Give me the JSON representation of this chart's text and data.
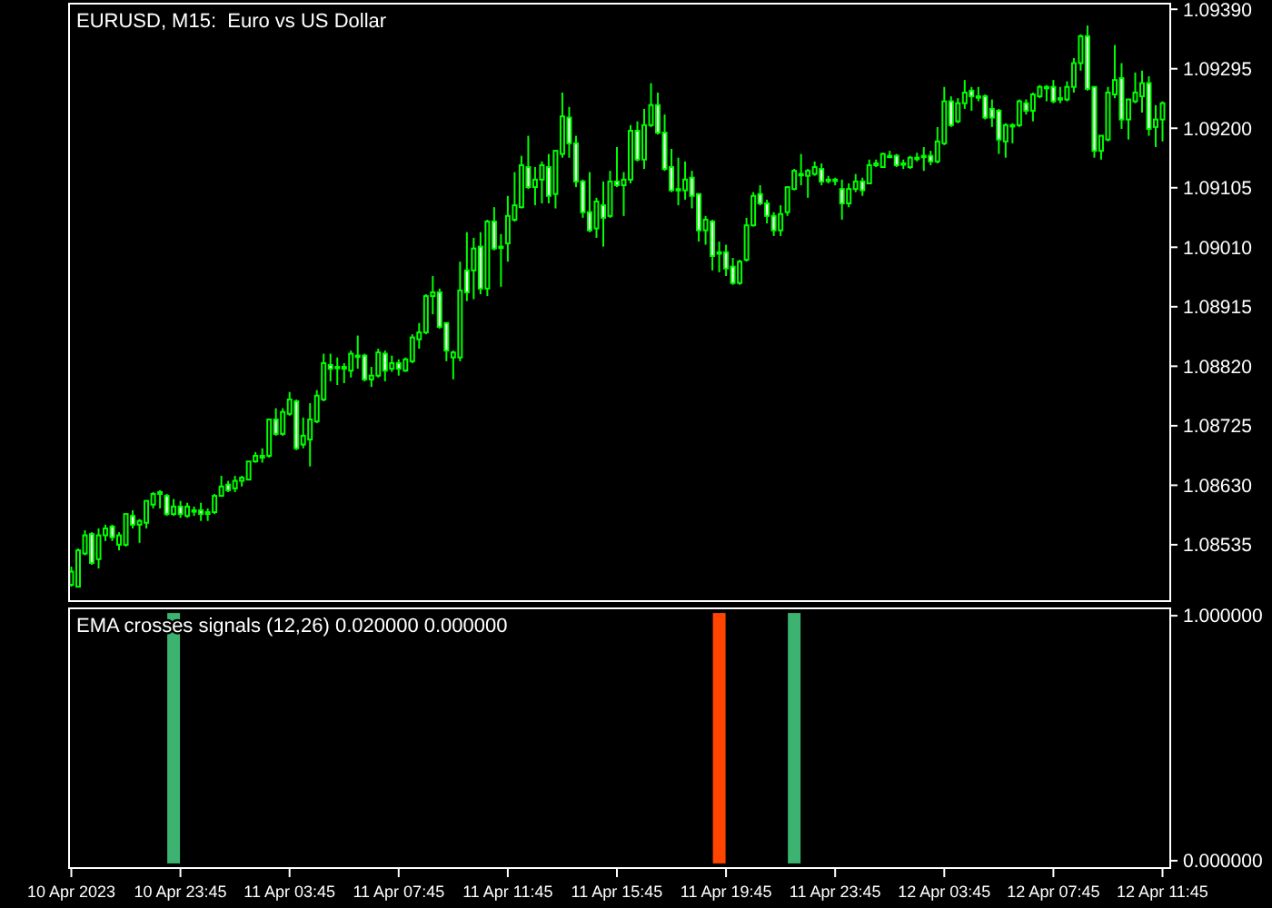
{
  "chart_data": [
    {
      "type": "candlestick",
      "title": "EURUSD, M15:  Euro vs US Dollar",
      "color": "#00ff00",
      "tick_labels": "y",
      "xlim": [
        "2023-04-10T19:40",
        "2023-04-12T12:02"
      ],
      "ylim": [
        1.08445,
        1.09399
      ],
      "yticks": [
        {
          "value": 1.0939,
          "label": "1.09390"
        },
        {
          "value": 1.09295,
          "label": "1.09295"
        },
        {
          "value": 1.092,
          "label": "1.09200"
        },
        {
          "value": 1.09105,
          "label": "1.09105"
        },
        {
          "value": 1.0901,
          "label": "1.09010"
        },
        {
          "value": 1.08915,
          "label": "1.08915"
        },
        {
          "value": 1.0882,
          "label": "1.08820"
        },
        {
          "value": 1.08725,
          "label": "1.08725"
        },
        {
          "value": 1.0863,
          "label": "1.08630"
        },
        {
          "value": 1.08535,
          "label": "1.08535"
        }
      ],
      "x": [
        "2023-04-10T19:45",
        "2023-04-10T20:00",
        "2023-04-10T20:15",
        "2023-04-10T20:30",
        "2023-04-10T20:45",
        "2023-04-10T21:00",
        "2023-04-10T21:15",
        "2023-04-10T21:30",
        "2023-04-10T21:45",
        "2023-04-10T22:00",
        "2023-04-10T22:15",
        "2023-04-10T22:30",
        "2023-04-10T22:45",
        "2023-04-10T23:00",
        "2023-04-10T23:15",
        "2023-04-10T23:30",
        "2023-04-10T23:45",
        "2023-04-11T00:00",
        "2023-04-11T00:15",
        "2023-04-11T00:30",
        "2023-04-11T00:45",
        "2023-04-11T01:00",
        "2023-04-11T01:15",
        "2023-04-11T01:30",
        "2023-04-11T01:45",
        "2023-04-11T02:00",
        "2023-04-11T02:15",
        "2023-04-11T02:30",
        "2023-04-11T02:45",
        "2023-04-11T03:00",
        "2023-04-11T03:15",
        "2023-04-11T03:30",
        "2023-04-11T03:45",
        "2023-04-11T04:00",
        "2023-04-11T04:15",
        "2023-04-11T04:30",
        "2023-04-11T04:45",
        "2023-04-11T05:00",
        "2023-04-11T05:15",
        "2023-04-11T05:30",
        "2023-04-11T05:45",
        "2023-04-11T06:00",
        "2023-04-11T06:15",
        "2023-04-11T06:30",
        "2023-04-11T06:45",
        "2023-04-11T07:00",
        "2023-04-11T07:15",
        "2023-04-11T07:30",
        "2023-04-11T07:45",
        "2023-04-11T08:00",
        "2023-04-11T08:15",
        "2023-04-11T08:30",
        "2023-04-11T08:45",
        "2023-04-11T09:00",
        "2023-04-11T09:15",
        "2023-04-11T09:30",
        "2023-04-11T09:45",
        "2023-04-11T10:00",
        "2023-04-11T10:15",
        "2023-04-11T10:30",
        "2023-04-11T10:45",
        "2023-04-11T11:00",
        "2023-04-11T11:15",
        "2023-04-11T11:30",
        "2023-04-11T11:45",
        "2023-04-11T12:00",
        "2023-04-11T12:15",
        "2023-04-11T12:30",
        "2023-04-11T12:45",
        "2023-04-11T13:00",
        "2023-04-11T13:15",
        "2023-04-11T13:30",
        "2023-04-11T13:45",
        "2023-04-11T14:00",
        "2023-04-11T14:15",
        "2023-04-11T14:30",
        "2023-04-11T14:45",
        "2023-04-11T15:00",
        "2023-04-11T15:15",
        "2023-04-11T15:30",
        "2023-04-11T15:45",
        "2023-04-11T16:00",
        "2023-04-11T16:15",
        "2023-04-11T16:30",
        "2023-04-11T16:45",
        "2023-04-11T17:00",
        "2023-04-11T17:15",
        "2023-04-11T17:30",
        "2023-04-11T17:45",
        "2023-04-11T18:00",
        "2023-04-11T18:15",
        "2023-04-11T18:30",
        "2023-04-11T18:45",
        "2023-04-11T19:00",
        "2023-04-11T19:15",
        "2023-04-11T19:30",
        "2023-04-11T19:45",
        "2023-04-11T20:00",
        "2023-04-11T20:15",
        "2023-04-11T20:30",
        "2023-04-11T20:45",
        "2023-04-11T21:00",
        "2023-04-11T21:15",
        "2023-04-11T21:30",
        "2023-04-11T21:45",
        "2023-04-11T22:00",
        "2023-04-11T22:15",
        "2023-04-11T22:30",
        "2023-04-11T22:45",
        "2023-04-11T23:00",
        "2023-04-11T23:15",
        "2023-04-11T23:30",
        "2023-04-11T23:45",
        "2023-04-12T00:00",
        "2023-04-12T00:15",
        "2023-04-12T00:30",
        "2023-04-12T00:45",
        "2023-04-12T01:00",
        "2023-04-12T01:15",
        "2023-04-12T01:30",
        "2023-04-12T01:45",
        "2023-04-12T02:00",
        "2023-04-12T02:15",
        "2023-04-12T02:30",
        "2023-04-12T02:45",
        "2023-04-12T03:00",
        "2023-04-12T03:15",
        "2023-04-12T03:30",
        "2023-04-12T03:45",
        "2023-04-12T04:00",
        "2023-04-12T04:15",
        "2023-04-12T04:30",
        "2023-04-12T04:45",
        "2023-04-12T05:00",
        "2023-04-12T05:15",
        "2023-04-12T05:30",
        "2023-04-12T05:45",
        "2023-04-12T06:00",
        "2023-04-12T06:15",
        "2023-04-12T06:30",
        "2023-04-12T06:45",
        "2023-04-12T07:00",
        "2023-04-12T07:15",
        "2023-04-12T07:30",
        "2023-04-12T07:45",
        "2023-04-12T08:00",
        "2023-04-12T08:15",
        "2023-04-12T08:30",
        "2023-04-12T08:45",
        "2023-04-12T09:00",
        "2023-04-12T09:15",
        "2023-04-12T09:30",
        "2023-04-12T09:45",
        "2023-04-12T10:00",
        "2023-04-12T10:15",
        "2023-04-12T10:30",
        "2023-04-12T10:45",
        "2023-04-12T11:00",
        "2023-04-12T11:15",
        "2023-04-12T11:30",
        "2023-04-12T11:45"
      ],
      "ohlc": [
        [
          1.08471,
          1.085,
          1.08468,
          1.08492
        ],
        [
          1.08468,
          1.08529,
          1.08468,
          1.08526
        ],
        [
          1.08521,
          1.08558,
          1.08518,
          1.0855
        ],
        [
          1.08552,
          1.08555,
          1.08503,
          1.08506
        ],
        [
          1.08512,
          1.08561,
          1.08497,
          1.0855
        ],
        [
          1.0855,
          1.08567,
          1.08541,
          1.08561
        ],
        [
          1.08564,
          1.08567,
          1.08541,
          1.08547
        ],
        [
          1.08535,
          1.08555,
          1.08526,
          1.0855
        ],
        [
          1.08535,
          1.08584,
          1.08532,
          1.08584
        ],
        [
          1.08581,
          1.0859,
          1.08561,
          1.08567
        ],
        [
          1.08567,
          1.08576,
          1.08538,
          1.08573
        ],
        [
          1.0857,
          1.08605,
          1.08561,
          1.08605
        ],
        [
          1.08599,
          1.08619,
          1.08593,
          1.08616
        ],
        [
          1.08616,
          1.08622,
          1.08593,
          1.08619
        ],
        [
          1.08613,
          1.08616,
          1.08581,
          1.08584
        ],
        [
          1.08584,
          1.08608,
          1.08581,
          1.08596
        ],
        [
          1.08596,
          1.08605,
          1.08578,
          1.08584
        ],
        [
          1.08581,
          1.08602,
          1.08578,
          1.08596
        ],
        [
          1.0859,
          1.08596,
          1.08581,
          1.0859
        ],
        [
          1.0859,
          1.08602,
          1.08573,
          1.08584
        ],
        [
          1.08584,
          1.08593,
          1.08573,
          1.08587
        ],
        [
          1.08587,
          1.08616,
          1.08584,
          1.08613
        ],
        [
          1.08613,
          1.08645,
          1.08613,
          1.08628
        ],
        [
          1.08631,
          1.08637,
          1.08619,
          1.08622
        ],
        [
          1.08625,
          1.08645,
          1.08619,
          1.08637
        ],
        [
          1.08637,
          1.08645,
          1.08628,
          1.08642
        ],
        [
          1.08639,
          1.08668,
          1.08639,
          1.08668
        ],
        [
          1.08668,
          1.08683,
          1.08666,
          1.08677
        ],
        [
          1.08674,
          1.08689,
          1.08666,
          1.08677
        ],
        [
          1.08677,
          1.08735,
          1.08674,
          1.08735
        ],
        [
          1.08735,
          1.08753,
          1.08709,
          1.08712
        ],
        [
          1.08712,
          1.08753,
          1.08709,
          1.08747
        ],
        [
          1.08744,
          1.08779,
          1.08741,
          1.08767
        ],
        [
          1.08764,
          1.08767,
          1.08686,
          1.08689
        ],
        [
          1.08695,
          1.08738,
          1.08689,
          1.08709
        ],
        [
          1.08703,
          1.08761,
          1.0866,
          1.08735
        ],
        [
          1.08732,
          1.08782,
          1.08729,
          1.08773
        ],
        [
          1.08767,
          1.0884,
          1.08764,
          1.08825
        ],
        [
          1.08822,
          1.0884,
          1.08796,
          1.08816
        ],
        [
          1.08819,
          1.08834,
          1.0879,
          1.08819
        ],
        [
          1.08816,
          1.08825,
          1.08793,
          1.08819
        ],
        [
          1.08813,
          1.08845,
          1.08802,
          1.0884
        ],
        [
          1.08837,
          1.08869,
          1.08816,
          1.08837
        ],
        [
          1.08837,
          1.0884,
          1.08796,
          1.08799
        ],
        [
          1.08799,
          1.08819,
          1.08787,
          1.08805
        ],
        [
          1.08805,
          1.08848,
          1.08802,
          1.08842
        ],
        [
          1.0884,
          1.08845,
          1.08796,
          1.08813
        ],
        [
          1.08816,
          1.08837,
          1.08811,
          1.08825
        ],
        [
          1.08825,
          1.08831,
          1.08805,
          1.08816
        ],
        [
          1.08813,
          1.08834,
          1.08811,
          1.08831
        ],
        [
          1.08828,
          1.08871,
          1.08825,
          1.08866
        ],
        [
          1.08863,
          1.08889,
          1.08848,
          1.08874
        ],
        [
          1.08874,
          1.08935,
          1.08871,
          1.08932
        ],
        [
          1.08932,
          1.08964,
          1.08903,
          1.08938
        ],
        [
          1.08938,
          1.08944,
          1.0888,
          1.08883
        ],
        [
          1.08889,
          1.08889,
          1.08828,
          1.08845
        ],
        [
          1.08834,
          1.08845,
          1.08799,
          1.08842
        ],
        [
          1.08834,
          1.08987,
          1.08828,
          1.08941
        ],
        [
          1.08973,
          1.09034,
          1.08924,
          1.08938
        ],
        [
          1.08973,
          1.09025,
          1.08927,
          1.09008
        ],
        [
          1.09011,
          1.09034,
          1.08935,
          1.08944
        ],
        [
          1.08944,
          1.09054,
          1.08932,
          1.09051
        ],
        [
          1.09051,
          1.09074,
          1.09005,
          1.09008
        ],
        [
          1.09011,
          1.09031,
          1.08947,
          1.09011
        ],
        [
          1.09016,
          1.09092,
          1.08987,
          1.0906
        ],
        [
          1.09054,
          1.0913,
          1.09051,
          1.09077
        ],
        [
          1.09074,
          1.09156,
          1.09072,
          1.09141
        ],
        [
          1.09138,
          1.09188,
          1.09103,
          1.09106
        ],
        [
          1.09106,
          1.09138,
          1.09077,
          1.09118
        ],
        [
          1.09118,
          1.09147,
          1.0908,
          1.09141
        ],
        [
          1.09138,
          1.09159,
          1.0908,
          1.09092
        ],
        [
          1.09095,
          1.09164,
          1.09072,
          1.09164
        ],
        [
          1.09159,
          1.09257,
          1.09153,
          1.09219
        ],
        [
          1.09217,
          1.09234,
          1.09153,
          1.09176
        ],
        [
          1.09176,
          1.09188,
          1.09106,
          1.09115
        ],
        [
          1.09115,
          1.09118,
          1.09057,
          1.09066
        ],
        [
          1.09066,
          1.0913,
          1.09034,
          1.09037
        ],
        [
          1.0904,
          1.09089,
          1.09025,
          1.09083
        ],
        [
          1.09077,
          1.09115,
          1.09011,
          1.09057
        ],
        [
          1.0906,
          1.09132,
          1.09057,
          1.09115
        ],
        [
          1.09115,
          1.0917,
          1.09106,
          1.09109
        ],
        [
          1.09109,
          1.0913,
          1.0906,
          1.09118
        ],
        [
          1.09118,
          1.09205,
          1.09112,
          1.09196
        ],
        [
          1.09196,
          1.09211,
          1.09147,
          1.0915
        ],
        [
          1.0915,
          1.09231,
          1.09135,
          1.09205
        ],
        [
          1.09205,
          1.09272,
          1.09202,
          1.09237
        ],
        [
          1.09237,
          1.09257,
          1.0919,
          1.09193
        ],
        [
          1.09193,
          1.09222,
          1.09132,
          1.09135
        ],
        [
          1.09138,
          1.09167,
          1.09098,
          1.09101
        ],
        [
          1.09103,
          1.09153,
          1.09077,
          1.09103
        ],
        [
          1.09101,
          1.09147,
          1.09086,
          1.09118
        ],
        [
          1.09121,
          1.09132,
          1.09072,
          1.09092
        ],
        [
          1.09095,
          1.09095,
          1.09019,
          1.09037
        ],
        [
          1.09037,
          1.0906,
          1.09014,
          1.09054
        ],
        [
          1.09051,
          1.09054,
          1.08973,
          1.08996
        ],
        [
          1.09002,
          1.09019,
          1.0897,
          1.09002
        ],
        [
          1.09002,
          1.09014,
          1.08964,
          1.08976
        ],
        [
          1.08979,
          1.08993,
          1.0895,
          1.08953
        ],
        [
          1.08953,
          1.0899,
          1.0895,
          1.08987
        ],
        [
          1.0899,
          1.09057,
          1.08987,
          1.09045
        ],
        [
          1.09045,
          1.09098,
          1.09043,
          1.09092
        ],
        [
          1.09095,
          1.09109,
          1.09077,
          1.0908
        ],
        [
          1.0908,
          1.09086,
          1.09048,
          1.0906
        ],
        [
          1.0906,
          1.09066,
          1.09028,
          1.09037
        ],
        [
          1.09037,
          1.09077,
          1.09028,
          1.09063
        ],
        [
          1.09066,
          1.09106,
          1.0906,
          1.09106
        ],
        [
          1.09103,
          1.09135,
          1.09101,
          1.09132
        ],
        [
          1.09127,
          1.09159,
          1.09109,
          1.09127
        ],
        [
          1.09124,
          1.09135,
          1.09089,
          1.09132
        ],
        [
          1.09127,
          1.09147,
          1.09124,
          1.09138
        ],
        [
          1.09135,
          1.09144,
          1.09109,
          1.09115
        ],
        [
          1.09118,
          1.09124,
          1.09112,
          1.09118
        ],
        [
          1.09118,
          1.09121,
          1.09109,
          1.09118
        ],
        [
          1.09103,
          1.09118,
          1.09054,
          1.0908
        ],
        [
          1.0908,
          1.09112,
          1.09074,
          1.09103
        ],
        [
          1.09103,
          1.09127,
          1.09098,
          1.09115
        ],
        [
          1.09115,
          1.09121,
          1.09092,
          1.09101
        ],
        [
          1.09112,
          1.0915,
          1.09112,
          1.09141
        ],
        [
          1.09141,
          1.0915,
          1.09138,
          1.09144
        ],
        [
          1.09138,
          1.09161,
          1.09138,
          1.09159
        ],
        [
          1.09156,
          1.09164,
          1.09153,
          1.09156
        ],
        [
          1.09156,
          1.09159,
          1.09138,
          1.09141
        ],
        [
          1.09144,
          1.0915,
          1.09135,
          1.09144
        ],
        [
          1.09138,
          1.09156,
          1.09135,
          1.09153
        ],
        [
          1.09153,
          1.09161,
          1.09147,
          1.09153
        ],
        [
          1.09156,
          1.0917,
          1.09132,
          1.09156
        ],
        [
          1.09156,
          1.09164,
          1.09141,
          1.09147
        ],
        [
          1.09147,
          1.09202,
          1.09144,
          1.09179
        ],
        [
          1.09176,
          1.09266,
          1.09173,
          1.09243
        ],
        [
          1.09243,
          1.09251,
          1.09202,
          1.09205
        ],
        [
          1.09211,
          1.09248,
          1.09208,
          1.0924
        ],
        [
          1.0924,
          1.09277,
          1.09231,
          1.09257
        ],
        [
          1.0926,
          1.09266,
          1.09228,
          1.09251
        ],
        [
          1.09251,
          1.09266,
          1.09243,
          1.09251
        ],
        [
          1.09251,
          1.09254,
          1.09214,
          1.09217
        ],
        [
          1.09231,
          1.09246,
          1.09202,
          1.09217
        ],
        [
          1.09228,
          1.09231,
          1.09159,
          1.09182
        ],
        [
          1.09179,
          1.09208,
          1.09153,
          1.09205
        ],
        [
          1.09205,
          1.09208,
          1.09176,
          1.09205
        ],
        [
          1.09205,
          1.09246,
          1.09202,
          1.09243
        ],
        [
          1.0924,
          1.09246,
          1.09222,
          1.09228
        ],
        [
          1.09228,
          1.09257,
          1.09211,
          1.09254
        ],
        [
          1.09251,
          1.09269,
          1.09248,
          1.09266
        ],
        [
          1.09266,
          1.09269,
          1.09243,
          1.09266
        ],
        [
          1.09266,
          1.09277,
          1.0924,
          1.09243
        ],
        [
          1.09248,
          1.09266,
          1.0924,
          1.09248
        ],
        [
          1.09246,
          1.09275,
          1.09243,
          1.09266
        ],
        [
          1.09266,
          1.09312,
          1.09257,
          1.09304
        ],
        [
          1.09304,
          1.0935,
          1.09292,
          1.09347
        ],
        [
          1.09347,
          1.09364,
          1.0926,
          1.09263
        ],
        [
          1.09266,
          1.09266,
          1.09153,
          1.09164
        ],
        [
          1.09164,
          1.09188,
          1.0915,
          1.09188
        ],
        [
          1.09182,
          1.09266,
          1.09179,
          1.09257
        ],
        [
          1.09254,
          1.09333,
          1.09248,
          1.09277
        ],
        [
          1.0928,
          1.09304,
          1.09199,
          1.09214
        ],
        [
          1.09214,
          1.09246,
          1.09182,
          1.09246
        ],
        [
          1.09243,
          1.09289,
          1.0924,
          1.09257
        ],
        [
          1.09251,
          1.09292,
          1.09225,
          1.09272
        ],
        [
          1.09272,
          1.09283,
          1.09188,
          1.09199
        ],
        [
          1.09202,
          1.09237,
          1.0917,
          1.09214
        ],
        [
          1.09214,
          1.09243,
          1.09179,
          1.0924
        ]
      ]
    },
    {
      "type": "bar",
      "title": "EMA crosses signals (12,26) 0.020000 0.000000",
      "xlim": [
        "2023-04-10T19:40",
        "2023-04-12T12:02"
      ],
      "xticks": [
        {
          "value": "2023-04-10T19:45",
          "label": "10 Apr 2023"
        },
        {
          "value": "2023-04-10T23:45",
          "label": "10 Apr 23:45"
        },
        {
          "value": "2023-04-11T03:45",
          "label": "11 Apr 03:45"
        },
        {
          "value": "2023-04-11T07:45",
          "label": "11 Apr 07:45"
        },
        {
          "value": "2023-04-11T11:45",
          "label": "11 Apr 11:45"
        },
        {
          "value": "2023-04-11T15:45",
          "label": "11 Apr 15:45"
        },
        {
          "value": "2023-04-11T19:45",
          "label": "11 Apr 19:45"
        },
        {
          "value": "2023-04-11T23:45",
          "label": "11 Apr 23:45"
        },
        {
          "value": "2023-04-12T03:45",
          "label": "12 Apr 03:45"
        },
        {
          "value": "2023-04-12T07:45",
          "label": "12 Apr 07:45"
        },
        {
          "value": "2023-04-12T11:45",
          "label": "12 Apr 11:45"
        }
      ],
      "ylim": [
        -0.03,
        1.03
      ],
      "yticks": [
        {
          "value": 1,
          "label": "1.000000"
        },
        {
          "value": 0,
          "label": "0.000000"
        }
      ],
      "x": [
        "2023-04-10T19:45",
        "2023-04-10T20:00",
        "2023-04-10T20:15",
        "2023-04-10T20:30",
        "2023-04-10T20:45",
        "2023-04-10T21:00",
        "2023-04-10T21:15",
        "2023-04-10T21:30",
        "2023-04-10T21:45",
        "2023-04-10T22:00",
        "2023-04-10T22:15",
        "2023-04-10T22:30",
        "2023-04-10T22:45",
        "2023-04-10T23:00",
        "2023-04-10T23:15",
        "2023-04-10T23:30",
        "2023-04-10T23:45",
        "2023-04-11T00:00",
        "2023-04-11T00:15",
        "2023-04-11T00:30",
        "2023-04-11T00:45",
        "2023-04-11T01:00",
        "2023-04-11T01:15",
        "2023-04-11T01:30",
        "2023-04-11T01:45",
        "2023-04-11T02:00",
        "2023-04-11T02:15",
        "2023-04-11T02:30",
        "2023-04-11T02:45",
        "2023-04-11T03:00",
        "2023-04-11T03:15",
        "2023-04-11T03:30",
        "2023-04-11T03:45",
        "2023-04-11T04:00",
        "2023-04-11T04:15",
        "2023-04-11T04:30",
        "2023-04-11T04:45",
        "2023-04-11T05:00",
        "2023-04-11T05:15",
        "2023-04-11T05:30",
        "2023-04-11T05:45",
        "2023-04-11T06:00",
        "2023-04-11T06:15",
        "2023-04-11T06:30",
        "2023-04-11T06:45",
        "2023-04-11T07:00",
        "2023-04-11T07:15",
        "2023-04-11T07:30",
        "2023-04-11T07:45",
        "2023-04-11T08:00",
        "2023-04-11T08:15",
        "2023-04-11T08:30",
        "2023-04-11T08:45",
        "2023-04-11T09:00",
        "2023-04-11T09:15",
        "2023-04-11T09:30",
        "2023-04-11T09:45",
        "2023-04-11T10:00",
        "2023-04-11T10:15",
        "2023-04-11T10:30",
        "2023-04-11T10:45",
        "2023-04-11T11:00",
        "2023-04-11T11:15",
        "2023-04-11T11:30",
        "2023-04-11T11:45",
        "2023-04-11T12:00",
        "2023-04-11T12:15",
        "2023-04-11T12:30",
        "2023-04-11T12:45",
        "2023-04-11T13:00",
        "2023-04-11T13:15",
        "2023-04-11T13:30",
        "2023-04-11T13:45",
        "2023-04-11T14:00",
        "2023-04-11T14:15",
        "2023-04-11T14:30",
        "2023-04-11T14:45",
        "2023-04-11T15:00",
        "2023-04-11T15:15",
        "2023-04-11T15:30",
        "2023-04-11T15:45",
        "2023-04-11T16:00",
        "2023-04-11T16:15",
        "2023-04-11T16:30",
        "2023-04-11T16:45",
        "2023-04-11T17:00",
        "2023-04-11T17:15",
        "2023-04-11T17:30",
        "2023-04-11T17:45",
        "2023-04-11T18:00",
        "2023-04-11T18:15",
        "2023-04-11T18:30",
        "2023-04-11T18:45",
        "2023-04-11T19:00",
        "2023-04-11T19:15",
        "2023-04-11T19:30",
        "2023-04-11T19:45",
        "2023-04-11T20:00",
        "2023-04-11T20:15",
        "2023-04-11T20:30",
        "2023-04-11T20:45",
        "2023-04-11T21:00",
        "2023-04-11T21:15",
        "2023-04-11T21:30",
        "2023-04-11T21:45",
        "2023-04-11T22:00",
        "2023-04-11T22:15",
        "2023-04-11T22:30",
        "2023-04-11T22:45",
        "2023-04-11T23:00",
        "2023-04-11T23:15",
        "2023-04-11T23:30",
        "2023-04-11T23:45",
        "2023-04-12T00:00",
        "2023-04-12T00:15",
        "2023-04-12T00:30",
        "2023-04-12T00:45",
        "2023-04-12T01:00",
        "2023-04-12T01:15",
        "2023-04-12T01:30",
        "2023-04-12T01:45",
        "2023-04-12T02:00",
        "2023-04-12T02:15",
        "2023-04-12T02:30",
        "2023-04-12T02:45",
        "2023-04-12T03:00",
        "2023-04-12T03:15",
        "2023-04-12T03:30",
        "2023-04-12T03:45",
        "2023-04-12T04:00",
        "2023-04-12T04:15",
        "2023-04-12T04:30",
        "2023-04-12T04:45",
        "2023-04-12T05:00",
        "2023-04-12T05:15",
        "2023-04-12T05:30",
        "2023-04-12T05:45",
        "2023-04-12T06:00",
        "2023-04-12T06:15",
        "2023-04-12T06:30",
        "2023-04-12T06:45",
        "2023-04-12T07:00",
        "2023-04-12T07:15",
        "2023-04-12T07:30",
        "2023-04-12T07:45",
        "2023-04-12T08:00",
        "2023-04-12T08:15",
        "2023-04-12T08:30",
        "2023-04-12T08:45",
        "2023-04-12T09:00",
        "2023-04-12T09:15",
        "2023-04-12T09:30",
        "2023-04-12T09:45",
        "2023-04-12T10:00",
        "2023-04-12T10:15",
        "2023-04-12T10:30",
        "2023-04-12T10:45",
        "2023-04-12T11:00",
        "2023-04-12T11:15",
        "2023-04-12T11:30",
        "2023-04-12T11:45"
      ],
      "values": [
        0,
        0,
        0,
        0,
        0,
        0,
        0,
        0,
        0,
        0,
        0,
        0,
        0,
        0,
        0,
        1,
        0,
        0,
        0,
        0,
        0,
        0,
        0,
        0,
        0,
        0,
        0,
        0,
        0,
        0,
        0,
        0,
        0,
        0,
        0,
        0,
        0,
        0,
        0,
        0,
        0,
        0,
        0,
        0,
        0,
        0,
        0,
        0,
        0,
        0,
        0,
        0,
        0,
        0,
        0,
        0,
        0,
        0,
        0,
        0,
        0,
        0,
        0,
        0,
        0,
        0,
        0,
        0,
        0,
        0,
        0,
        0,
        0,
        0,
        0,
        0,
        0,
        0,
        0,
        0,
        0,
        0,
        0,
        0,
        0,
        0,
        0,
        0,
        0,
        0,
        0,
        0,
        0,
        0,
        0,
        1,
        0,
        0,
        0,
        0,
        0,
        0,
        0,
        0,
        0,
        0,
        1,
        0,
        0,
        0,
        0,
        0,
        0,
        0,
        0,
        0,
        0,
        0,
        0,
        0,
        0,
        0,
        0,
        0,
        0,
        0,
        0,
        0,
        0,
        0,
        0,
        0,
        0,
        0,
        0,
        0,
        0,
        0,
        0,
        0,
        0,
        0,
        0,
        0,
        0,
        0,
        0,
        0,
        0,
        0,
        0,
        0,
        0,
        0,
        0,
        0,
        0,
        0,
        0,
        0,
        0
      ],
      "colors": [
        "#ff4500",
        "#ff4500",
        "#ff4500",
        "#ff4500",
        "#ff4500",
        "#ff4500",
        "#ff4500",
        "#ff4500",
        "#ff4500",
        "#ff4500",
        "#ff4500",
        "#ff4500",
        "#ff4500",
        "#ff4500",
        "#ff4500",
        "#3cb371",
        "#3cb371",
        "#3cb371",
        "#3cb371",
        "#3cb371",
        "#3cb371",
        "#3cb371",
        "#3cb371",
        "#3cb371",
        "#3cb371",
        "#3cb371",
        "#3cb371",
        "#3cb371",
        "#3cb371",
        "#3cb371",
        "#3cb371",
        "#3cb371",
        "#3cb371",
        "#3cb371",
        "#3cb371",
        "#3cb371",
        "#3cb371",
        "#3cb371",
        "#3cb371",
        "#3cb371",
        "#3cb371",
        "#3cb371",
        "#3cb371",
        "#3cb371",
        "#3cb371",
        "#3cb371",
        "#3cb371",
        "#3cb371",
        "#3cb371",
        "#3cb371",
        "#3cb371",
        "#3cb371",
        "#3cb371",
        "#3cb371",
        "#3cb371",
        "#3cb371",
        "#3cb371",
        "#3cb371",
        "#3cb371",
        "#3cb371",
        "#3cb371",
        "#3cb371",
        "#3cb371",
        "#3cb371",
        "#3cb371",
        "#3cb371",
        "#3cb371",
        "#3cb371",
        "#3cb371",
        "#3cb371",
        "#3cb371",
        "#3cb371",
        "#3cb371",
        "#3cb371",
        "#3cb371",
        "#3cb371",
        "#3cb371",
        "#3cb371",
        "#3cb371",
        "#3cb371",
        "#3cb371",
        "#3cb371",
        "#3cb371",
        "#3cb371",
        "#3cb371",
        "#3cb371",
        "#3cb371",
        "#3cb371",
        "#3cb371",
        "#3cb371",
        "#3cb371",
        "#3cb371",
        "#3cb371",
        "#3cb371",
        "#3cb371",
        "#ff4500",
        "#ff4500",
        "#ff4500",
        "#ff4500",
        "#ff4500",
        "#ff4500",
        "#ff4500",
        "#ff4500",
        "#ff4500",
        "#ff4500",
        "#ff4500",
        "#3cb371",
        "#3cb371",
        "#3cb371",
        "#3cb371",
        "#3cb371",
        "#3cb371",
        "#3cb371",
        "#3cb371",
        "#3cb371",
        "#3cb371",
        "#3cb371",
        "#3cb371",
        "#3cb371",
        "#3cb371",
        "#3cb371",
        "#3cb371",
        "#3cb371",
        "#3cb371",
        "#3cb371",
        "#3cb371",
        "#3cb371",
        "#3cb371",
        "#3cb371",
        "#3cb371",
        "#3cb371",
        "#3cb371",
        "#3cb371",
        "#3cb371",
        "#3cb371",
        "#3cb371",
        "#3cb371",
        "#3cb371",
        "#3cb371",
        "#3cb371",
        "#3cb371",
        "#3cb371",
        "#3cb371",
        "#3cb371",
        "#3cb371",
        "#3cb371",
        "#3cb371",
        "#3cb371",
        "#3cb371",
        "#3cb371",
        "#3cb371",
        "#3cb371",
        "#3cb371",
        "#3cb371",
        "#3cb371",
        "#3cb371",
        "#3cb371",
        "#3cb371",
        "#3cb371",
        "#3cb371",
        "#3cb371"
      ]
    }
  ]
}
